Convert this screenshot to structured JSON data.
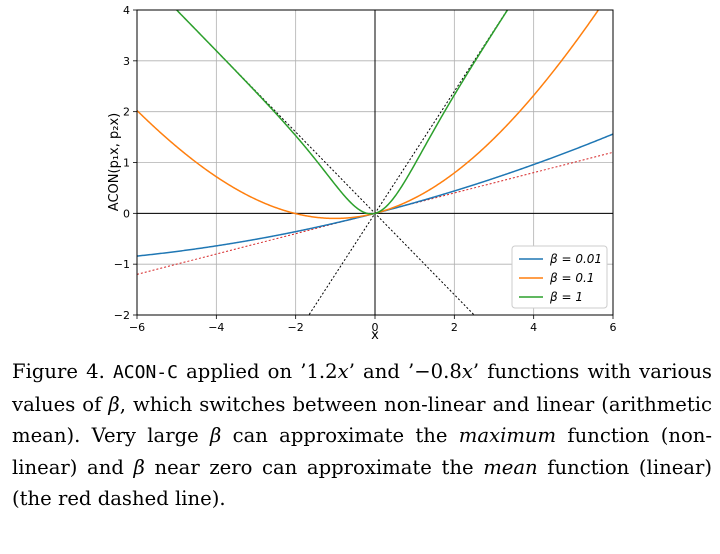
{
  "chart_data": {
    "type": "line",
    "xlabel": "x",
    "ylabel": "ACON(p₁x, p₂x)",
    "xlim": [
      -6,
      6
    ],
    "ylim": [
      -2,
      4
    ],
    "xticks": [
      -6,
      -4,
      -2,
      0,
      2,
      4,
      6
    ],
    "yticks": [
      -2,
      -1,
      0,
      1,
      2,
      3,
      4
    ],
    "grid": true,
    "legend_position": "lower-right",
    "p1": 1.2,
    "p2": -0.8,
    "series": [
      {
        "name": "β = 0.01",
        "beta": 0.01,
        "color": "#1f77b4",
        "x": [
          -6,
          -4,
          -2,
          0,
          2,
          4,
          6
        ],
        "y": [
          -0.85,
          -0.63,
          -0.36,
          0.0,
          0.44,
          0.97,
          1.58
        ]
      },
      {
        "name": "β = 0.1",
        "beta": 0.1,
        "color": "#ff7f0e",
        "x": [
          -6,
          -4,
          -2,
          0,
          2,
          4,
          6
        ],
        "y": [
          2.04,
          0.68,
          -0.01,
          0.0,
          0.73,
          2.14,
          4.06
        ]
      },
      {
        "name": "β = 1",
        "beta": 1,
        "color": "#2ca02c",
        "x": [
          -5,
          -4,
          -2,
          0,
          2,
          3.5
        ],
        "y": [
          4.0,
          3.2,
          1.53,
          0.0,
          2.37,
          4.0
        ]
      }
    ],
    "reference_lines": [
      {
        "style": "dotted",
        "color": "#000000",
        "slope": 1.2
      },
      {
        "style": "dotted",
        "color": "#000000",
        "slope": -0.8
      },
      {
        "style": "dotted",
        "color": "#d62728",
        "slope": 0.2
      }
    ]
  },
  "caption": {
    "fig_label": "Figure 4.",
    "method": "ACON-C",
    "text1": " applied on ’1.2",
    "var_x": "x",
    "text2": "’ and ’−0.8",
    "text3": "’ functions with various values of ",
    "beta": "β",
    "text4": ", which switches between non-linear and linear (arithmetic mean). Very large ",
    "text5": " can approximate the ",
    "maximum": "maximum",
    "text6": " function (non-linear) and ",
    "text7": " near zero can approximate the ",
    "mean": "mean",
    "text8": " function (linear) (the red dashed line)."
  }
}
